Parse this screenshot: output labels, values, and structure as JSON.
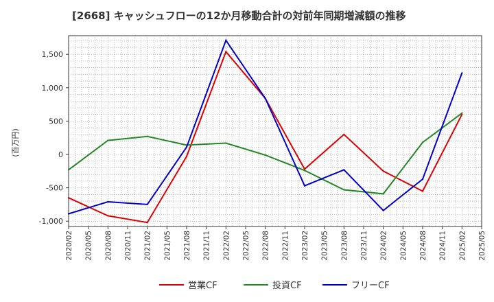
{
  "chart_data": {
    "type": "line",
    "title": "[2668]  キャッシュフローの12か月移動合計の対前年同期増減額の推移",
    "ylabel": "(百万円)",
    "xlabel": "",
    "ylim": [
      -1080,
      1780
    ],
    "yticks": [
      -1000,
      -500,
      0,
      500,
      1000,
      1500
    ],
    "ytick_labels": [
      "-1,000",
      "-500",
      "0",
      "500",
      "1,000",
      "1,500"
    ],
    "categories": [
      "2020/02",
      "2020/05",
      "2020/08",
      "2020/11",
      "2021/02",
      "2021/05",
      "2021/08",
      "2021/11",
      "2022/02",
      "2022/05",
      "2022/08",
      "2022/11",
      "2023/02",
      "2023/05",
      "2023/08",
      "2023/11",
      "2024/02",
      "2024/05",
      "2024/08",
      "2024/11",
      "2025/02",
      "2025/05"
    ],
    "legend_position": "bottom",
    "grid": true,
    "series": [
      {
        "name": "営業CF",
        "color": "#dd0000",
        "values": [
          -650,
          null,
          -920,
          null,
          -1020,
          null,
          -30,
          null,
          1540,
          null,
          840,
          null,
          -220,
          null,
          300,
          null,
          -250,
          null,
          -550,
          null,
          600,
          null
        ]
      },
      {
        "name": "投資CF",
        "color": "#228822",
        "values": [
          -230,
          null,
          210,
          null,
          270,
          null,
          140,
          null,
          170,
          null,
          -10,
          null,
          -240,
          null,
          -530,
          null,
          -590,
          null,
          180,
          null,
          620,
          null
        ]
      },
      {
        "name": "フリーCF",
        "color": "#0000cc",
        "values": [
          -890,
          null,
          -710,
          null,
          -750,
          null,
          110,
          null,
          1710,
          null,
          840,
          null,
          -470,
          null,
          -230,
          null,
          -840,
          null,
          -370,
          null,
          1220,
          null
        ]
      }
    ]
  }
}
